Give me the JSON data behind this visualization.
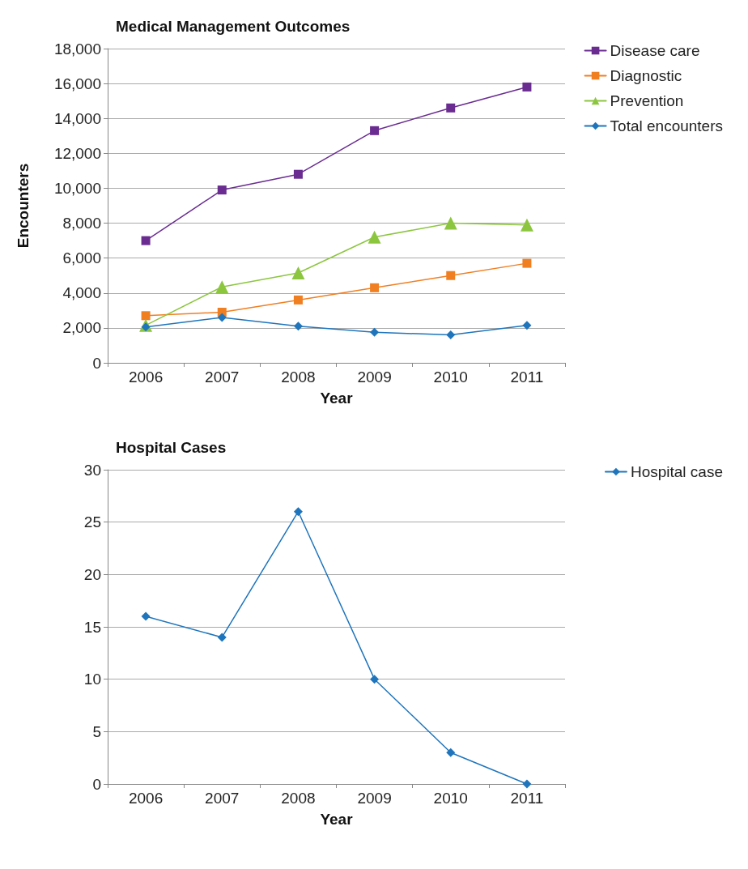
{
  "chart_data": [
    {
      "type": "line",
      "title": "Medical Management Outcomes",
      "xlabel": "Year",
      "ylabel": "Encounters",
      "categories": [
        "2006",
        "2007",
        "2008",
        "2009",
        "2010",
        "2011"
      ],
      "series": [
        {
          "name": "Disease care",
          "color": "#6a2c91",
          "marker": "square",
          "values": [
            7000,
            9900,
            10800,
            13300,
            14600,
            15800
          ]
        },
        {
          "name": "Diagnostic",
          "color": "#f07f22",
          "marker": "square",
          "values": [
            2700,
            2900,
            3600,
            4300,
            5000,
            5700
          ]
        },
        {
          "name": "Prevention",
          "color": "#8cc63f",
          "marker": "triangle",
          "values": [
            2150,
            4350,
            5150,
            7200,
            8000,
            7900
          ]
        },
        {
          "name": "Total encounters",
          "color": "#1f75bc",
          "marker": "diamond",
          "values": [
            2050,
            2600,
            2100,
            1750,
            1600,
            2150
          ]
        }
      ],
      "ylim": [
        0,
        18000
      ],
      "yticks": [
        {
          "value": 0,
          "label": "0"
        },
        {
          "value": 2000,
          "label": "2,000"
        },
        {
          "value": 4000,
          "label": "4,000"
        },
        {
          "value": 6000,
          "label": "6,000"
        },
        {
          "value": 8000,
          "label": "8,000"
        },
        {
          "value": 10000,
          "label": "10,000"
        },
        {
          "value": 12000,
          "label": "12,000"
        },
        {
          "value": 14000,
          "label": "14,000"
        },
        {
          "value": 16000,
          "label": "16,000"
        },
        {
          "value": 18000,
          "label": "18,000"
        }
      ],
      "grid": "y",
      "legend": "top right"
    },
    {
      "type": "line",
      "title": "Hospital Cases",
      "xlabel": "Year",
      "categories": [
        "2006",
        "2007",
        "2008",
        "2009",
        "2010",
        "2011"
      ],
      "series": [
        {
          "name": "Hospital case",
          "color": "#1f75bc",
          "marker": "diamond",
          "values": [
            16,
            14,
            26,
            10,
            3,
            0
          ]
        }
      ],
      "ylim": [
        0,
        30
      ],
      "yticks": [
        0,
        5,
        10,
        15,
        20,
        25,
        30
      ],
      "grid": "y",
      "legend": "top right"
    }
  ]
}
